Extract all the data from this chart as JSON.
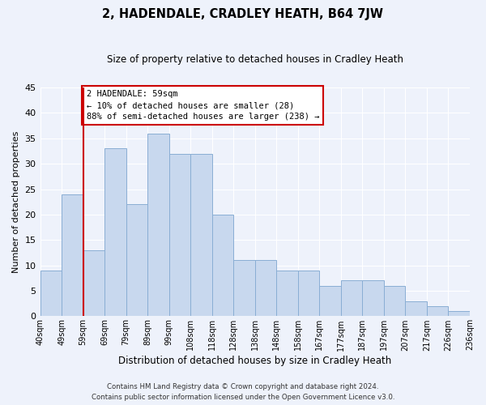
{
  "title": "2, HADENDALE, CRADLEY HEATH, B64 7JW",
  "subtitle": "Size of property relative to detached houses in Cradley Heath",
  "xlabel": "Distribution of detached houses by size in Cradley Heath",
  "ylabel": "Number of detached properties",
  "tick_labels": [
    "40sqm",
    "49sqm",
    "59sqm",
    "69sqm",
    "79sqm",
    "89sqm",
    "99sqm",
    "108sqm",
    "118sqm",
    "128sqm",
    "138sqm",
    "148sqm",
    "158sqm",
    "167sqm",
    "177sqm",
    "187sqm",
    "197sqm",
    "207sqm",
    "217sqm",
    "226sqm",
    "236sqm"
  ],
  "values": [
    9,
    24,
    13,
    33,
    22,
    36,
    32,
    32,
    20,
    11,
    11,
    9,
    9,
    6,
    7,
    7,
    6,
    3,
    2,
    1
  ],
  "bar_color": "#c8d8ee",
  "bar_edge_color": "#8aaed4",
  "vline_x": 2,
  "vline_color": "#cc0000",
  "annotation_line1": "2 HADENDALE: 59sqm",
  "annotation_line2": "← 10% of detached houses are smaller (28)",
  "annotation_line3": "88% of semi-detached houses are larger (238) →",
  "annotation_box_color": "#cc0000",
  "footer_line1": "Contains HM Land Registry data © Crown copyright and database right 2024.",
  "footer_line2": "Contains public sector information licensed under the Open Government Licence v3.0.",
  "ylim": [
    0,
    45
  ],
  "background_color": "#eef2fb",
  "grid_color": "#ffffff"
}
